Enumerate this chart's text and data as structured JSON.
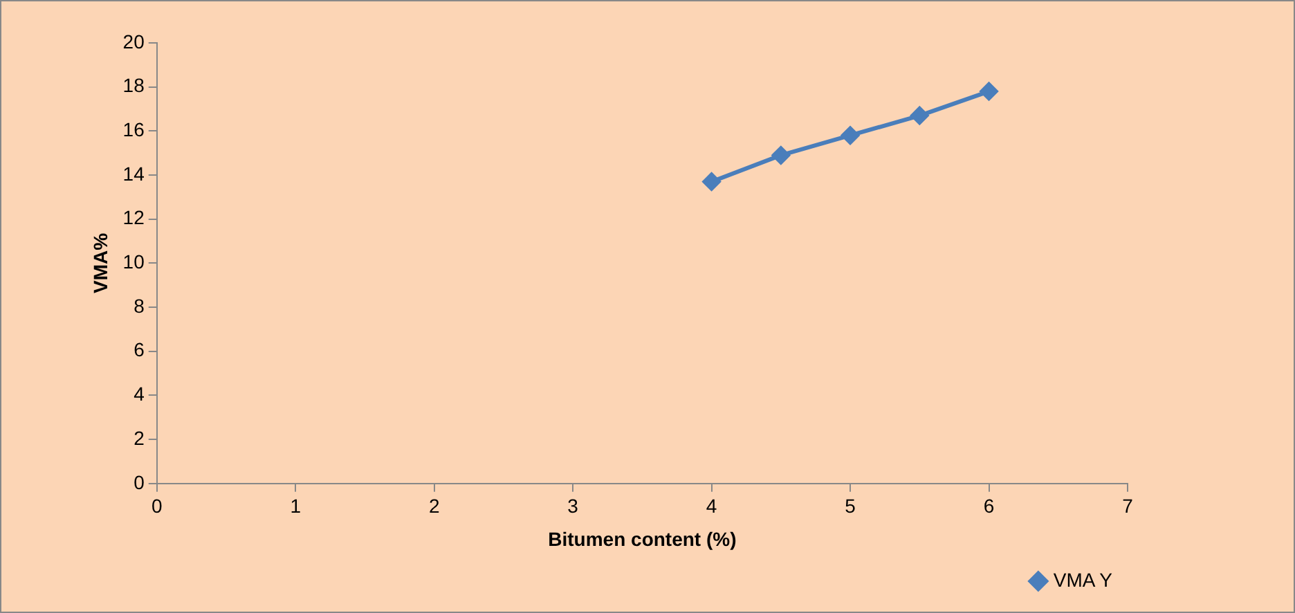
{
  "chart_data": {
    "type": "line",
    "xlabel": "Bitumen content (%)",
    "ylabel": "VMA%",
    "x": [
      4,
      4.5,
      5,
      5.5,
      6
    ],
    "series": [
      {
        "name": "VMA Y",
        "color": "#4a7ebb",
        "values": [
          13.7,
          14.9,
          15.8,
          16.7,
          17.8
        ]
      }
    ],
    "xlim": [
      0,
      7
    ],
    "xticks": [
      0,
      1,
      2,
      3,
      4,
      5,
      6,
      7
    ],
    "ylim": [
      0,
      20
    ],
    "yticks": [
      0,
      2,
      4,
      6,
      8,
      10,
      12,
      14,
      16,
      18,
      20
    ],
    "grid": false,
    "legend": "bottom right",
    "marker": "diamond",
    "line_style": "solid"
  }
}
